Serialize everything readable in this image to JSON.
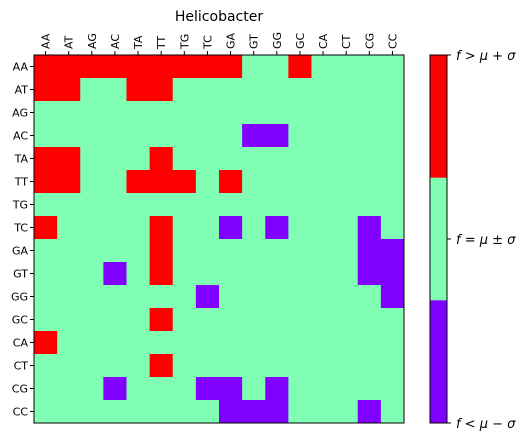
{
  "chart_data": {
    "type": "heatmap",
    "title": "Helicobacter",
    "x_categories": [
      "AA",
      "AT",
      "AG",
      "AC",
      "TA",
      "TT",
      "TG",
      "TC",
      "GA",
      "GT",
      "GG",
      "GC",
      "CA",
      "CT",
      "CG",
      "CC"
    ],
    "y_categories": [
      "AA",
      "AT",
      "AG",
      "AC",
      "TA",
      "TT",
      "TG",
      "TC",
      "GA",
      "GT",
      "GG",
      "GC",
      "CA",
      "CT",
      "CG",
      "CC"
    ],
    "value_levels": {
      "-1": "f < μ − σ",
      "0": "f = μ ± σ",
      "1": "f > μ + σ"
    },
    "matrix": [
      [
        1,
        1,
        1,
        1,
        1,
        1,
        1,
        1,
        1,
        0,
        0,
        1,
        0,
        0,
        0,
        0
      ],
      [
        1,
        1,
        0,
        0,
        1,
        1,
        0,
        0,
        0,
        0,
        0,
        0,
        0,
        0,
        0,
        0
      ],
      [
        0,
        0,
        0,
        0,
        0,
        0,
        0,
        0,
        0,
        0,
        0,
        0,
        0,
        0,
        0,
        0
      ],
      [
        0,
        0,
        0,
        0,
        0,
        0,
        0,
        0,
        0,
        -1,
        -1,
        0,
        0,
        0,
        0,
        0
      ],
      [
        1,
        1,
        0,
        0,
        0,
        1,
        0,
        0,
        0,
        0,
        0,
        0,
        0,
        0,
        0,
        0
      ],
      [
        1,
        1,
        0,
        0,
        1,
        1,
        1,
        0,
        1,
        0,
        0,
        0,
        0,
        0,
        0,
        0
      ],
      [
        0,
        0,
        0,
        0,
        0,
        0,
        0,
        0,
        0,
        0,
        0,
        0,
        0,
        0,
        0,
        0
      ],
      [
        1,
        0,
        0,
        0,
        0,
        1,
        0,
        0,
        -1,
        0,
        -1,
        0,
        0,
        0,
        -1,
        0
      ],
      [
        0,
        0,
        0,
        0,
        0,
        1,
        0,
        0,
        0,
        0,
        0,
        0,
        0,
        0,
        -1,
        -1
      ],
      [
        0,
        0,
        0,
        -1,
        0,
        1,
        0,
        0,
        0,
        0,
        0,
        0,
        0,
        0,
        -1,
        -1
      ],
      [
        0,
        0,
        0,
        0,
        0,
        0,
        0,
        -1,
        0,
        0,
        0,
        0,
        0,
        0,
        0,
        -1
      ],
      [
        0,
        0,
        0,
        0,
        0,
        1,
        0,
        0,
        0,
        0,
        0,
        0,
        0,
        0,
        0,
        0
      ],
      [
        1,
        0,
        0,
        0,
        0,
        0,
        0,
        0,
        0,
        0,
        0,
        0,
        0,
        0,
        0,
        0
      ],
      [
        0,
        0,
        0,
        0,
        0,
        1,
        0,
        0,
        0,
        0,
        0,
        0,
        0,
        0,
        0,
        0
      ],
      [
        0,
        0,
        0,
        -1,
        0,
        0,
        0,
        -1,
        -1,
        0,
        -1,
        0,
        0,
        0,
        0,
        0
      ],
      [
        0,
        0,
        0,
        0,
        0,
        0,
        0,
        0,
        -1,
        -1,
        -1,
        0,
        0,
        0,
        -1,
        0
      ]
    ],
    "colorbar": {
      "levels": [
        {
          "value": 1,
          "label": "f > μ + σ",
          "color": "#ff0000"
        },
        {
          "value": 0,
          "label": "f = μ ± σ",
          "color": "#80ffb4"
        },
        {
          "value": -1,
          "label": "f < μ − σ",
          "color": "#8000ff"
        }
      ]
    },
    "colors": {
      "high": "#ff0000",
      "mid": "#80ffb4",
      "low": "#8000ff"
    }
  }
}
